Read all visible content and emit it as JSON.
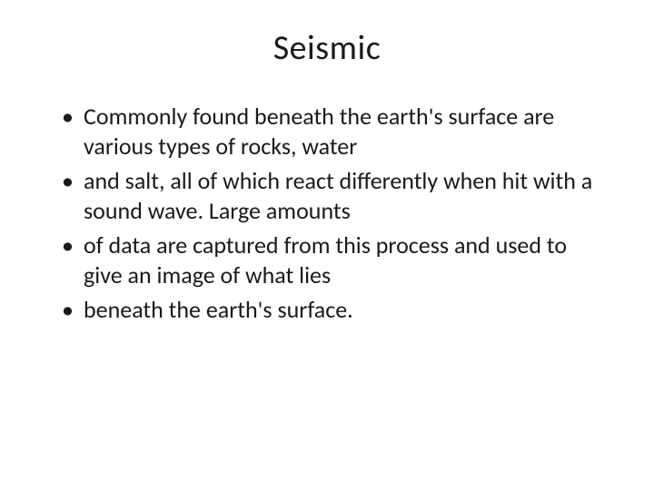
{
  "slide": {
    "title": "Seismic",
    "title_fontsize": 38,
    "body_fontsize": 26,
    "background_color": "#ffffff",
    "text_color": "#1a1a1a",
    "bullets": [
      "Commonly found beneath the earth's surface are various types of rocks, water",
      "and salt, all of which react differently when hit with a sound wave. Large amounts",
      "of data are captured from this process and used to give an image of what lies",
      "beneath the earth's surface."
    ]
  }
}
